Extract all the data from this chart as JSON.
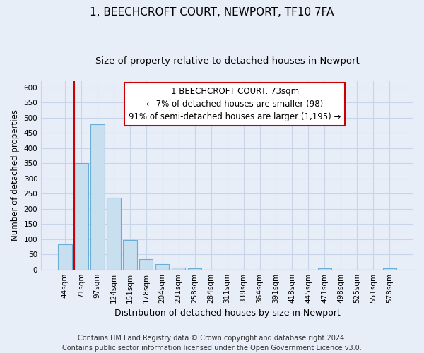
{
  "title": "1, BEECHCROFT COURT, NEWPORT, TF10 7FA",
  "subtitle": "Size of property relative to detached houses in Newport",
  "xlabel": "Distribution of detached houses by size in Newport",
  "ylabel": "Number of detached properties",
  "bar_labels": [
    "44sqm",
    "71sqm",
    "97sqm",
    "124sqm",
    "151sqm",
    "178sqm",
    "204sqm",
    "231sqm",
    "258sqm",
    "284sqm",
    "311sqm",
    "338sqm",
    "364sqm",
    "391sqm",
    "418sqm",
    "445sqm",
    "471sqm",
    "498sqm",
    "525sqm",
    "551sqm",
    "578sqm"
  ],
  "bar_values": [
    83,
    350,
    478,
    237,
    97,
    35,
    18,
    7,
    3,
    0,
    0,
    0,
    0,
    0,
    0,
    0,
    3,
    0,
    0,
    0,
    3
  ],
  "bar_color": "#c8dff0",
  "bar_edge_color": "#6aaed6",
  "marker_line_color": "#cc0000",
  "ylim": [
    0,
    620
  ],
  "yticks": [
    0,
    50,
    100,
    150,
    200,
    250,
    300,
    350,
    400,
    450,
    500,
    550,
    600
  ],
  "annotation_line1": "1 BEECHCROFT COURT: 73sqm",
  "annotation_line2": "← 7% of detached houses are smaller (98)",
  "annotation_line3": "91% of semi-detached houses are larger (1,195) →",
  "annotation_box_color": "#ffffff",
  "annotation_box_edge_color": "#cc0000",
  "footer_line1": "Contains HM Land Registry data © Crown copyright and database right 2024.",
  "footer_line2": "Contains public sector information licensed under the Open Government Licence v3.0.",
  "background_color": "#e8eef8",
  "grid_color": "#c8d4e8",
  "title_fontsize": 11,
  "subtitle_fontsize": 9.5,
  "xlabel_fontsize": 9,
  "ylabel_fontsize": 8.5,
  "tick_fontsize": 7.5,
  "annotation_fontsize": 8.5,
  "footer_fontsize": 7
}
